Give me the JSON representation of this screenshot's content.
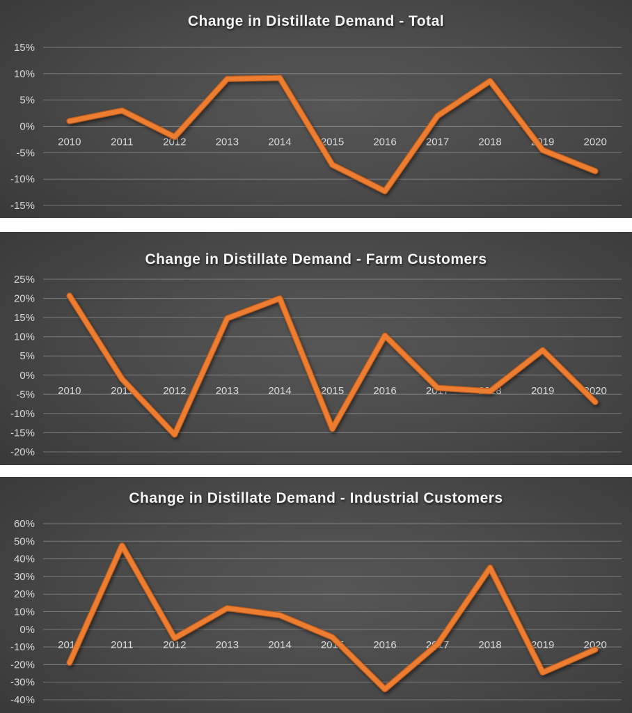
{
  "colors": {
    "line": "#ED7D31",
    "line_edge": "#B85C1D",
    "labels": "#D9D9D9",
    "title": "#F5F5F5",
    "panel_gap": "#FFFFFF"
  },
  "chart_data": [
    {
      "type": "line",
      "title": "Change in Distillate Demand - Total",
      "xlabel": "",
      "ylabel": "",
      "x": [
        "2010",
        "2011",
        "2012",
        "2013",
        "2014",
        "2015",
        "2016",
        "2017",
        "2018",
        "2019",
        "2020"
      ],
      "series": [
        {
          "name": "Total",
          "values": [
            1,
            3,
            -2,
            9,
            9.2,
            -7.3,
            -12.3,
            2,
            8.6,
            -4.5,
            -8.5
          ]
        }
      ],
      "ylim": [
        -15,
        15
      ],
      "yticks": [
        15,
        10,
        5,
        0,
        -5,
        -10,
        -15
      ],
      "ytick_labels": [
        "15%",
        "10%",
        "5%",
        "0%",
        "-5%",
        "-10%",
        "-15%"
      ],
      "grid": true,
      "legend": false
    },
    {
      "type": "line",
      "title": "Change in Distillate Demand - Farm Customers",
      "xlabel": "",
      "ylabel": "",
      "x": [
        "2010",
        "2011",
        "2012",
        "2013",
        "2014",
        "2015",
        "2016",
        "2017",
        "2018",
        "2019",
        "2020"
      ],
      "series": [
        {
          "name": "Farm Customers",
          "values": [
            20.7,
            -1,
            -15.5,
            14.8,
            20,
            -14,
            10.3,
            -3.3,
            -4.2,
            6.5,
            -7
          ]
        }
      ],
      "ylim": [
        -20,
        25
      ],
      "yticks": [
        25,
        20,
        15,
        10,
        5,
        0,
        -5,
        -10,
        -15,
        -20
      ],
      "ytick_labels": [
        "25%",
        "20%",
        "15%",
        "10%",
        "5%",
        "0%",
        "-5%",
        "-10%",
        "-15%",
        "-20%"
      ],
      "grid": true,
      "legend": false
    },
    {
      "type": "line",
      "title": "Change in Distillate Demand - Industrial Customers",
      "xlabel": "",
      "ylabel": "",
      "x": [
        "2010",
        "2011",
        "2012",
        "2013",
        "2014",
        "2015",
        "2016",
        "2017",
        "2018",
        "2019",
        "2020"
      ],
      "series": [
        {
          "name": "Industrial Customers",
          "values": [
            -19,
            47.5,
            -5,
            12,
            8,
            -4.5,
            -34,
            -8.5,
            35,
            -24.5,
            -11.5
          ]
        }
      ],
      "ylim": [
        -40,
        60
      ],
      "yticks": [
        60,
        50,
        40,
        30,
        20,
        10,
        0,
        -10,
        -20,
        -30,
        -40
      ],
      "ytick_labels": [
        "60%",
        "50%",
        "40%",
        "30%",
        "20%",
        "10%",
        "0%",
        "-10%",
        "-20%",
        "-30%",
        "-40%"
      ],
      "grid": true,
      "legend": false
    }
  ]
}
